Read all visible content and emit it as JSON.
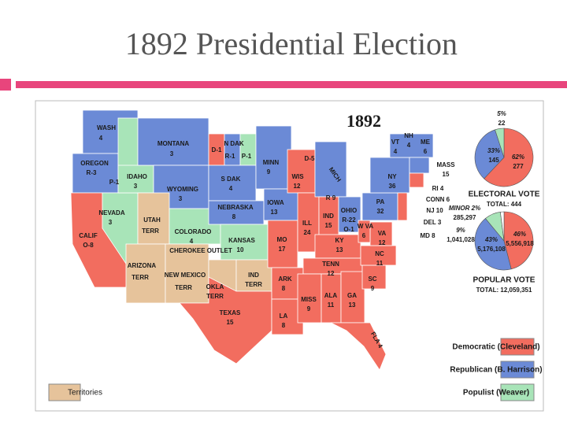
{
  "title": "1892 Presidential Election",
  "map": {
    "title": "1892",
    "labels": [
      "WASH",
      "4",
      "MONTANA",
      "3",
      "OREGON",
      "R-3",
      "P-1",
      "IDAHO",
      "3",
      "N DAK",
      "D-1",
      "R-1",
      "P-1",
      "MINN",
      "9",
      "S DAK",
      "4",
      "WYOMING",
      "3",
      "NEVADA",
      "3",
      "UTAH",
      "TERR",
      "NEBRASKA",
      "8",
      "IOWA",
      "13",
      "WIS",
      "12",
      "COLORADO",
      "4",
      "KANSAS",
      "10",
      "CHEROKEE OUTLET",
      "CALIF",
      "O-8",
      "ARIZONA",
      "TERR",
      "NEW MEXICO",
      "TERR",
      "OKLA",
      "TERR",
      "IND",
      "TERR",
      "TEXAS",
      "15",
      "MO",
      "17",
      "ARK",
      "8",
      "LA",
      "8",
      "ILL",
      "24",
      "IND",
      "15",
      "OHIO",
      "R-22",
      "O-1",
      "MICH",
      "R 9",
      "D-5",
      "KY",
      "13",
      "TENN",
      "12",
      "MISS",
      "9",
      "ALA",
      "11",
      "GA",
      "13",
      "SC",
      "9",
      "NC",
      "11",
      "VA",
      "12",
      "W VA",
      "6",
      "PA",
      "32",
      "NY",
      "36",
      "VT",
      "4",
      "NH",
      "4",
      "ME",
      "6",
      "MASS",
      "15",
      "RI 4",
      "CONN 6",
      "NJ 10",
      "DEL 3",
      "MD 8",
      "FLA 4"
    ]
  },
  "electoral_vote": {
    "title": "ELECTORAL VOTE",
    "total": "TOTAL: 444",
    "slices": [
      {
        "value": 62,
        "label": "62%",
        "count": "277",
        "color": "#f26d5f"
      },
      {
        "value": 33,
        "label": "33%",
        "count": "145",
        "color": "#6b8ad6"
      },
      {
        "value": 5,
        "label": "5%",
        "count": "22",
        "color": "#a8e4b8"
      }
    ]
  },
  "popular_vote": {
    "title": "POPULAR VOTE",
    "total": "TOTAL: 12,059,351",
    "slices": [
      {
        "value": 46,
        "label": "46%",
        "count": "5,556,918",
        "color": "#f26d5f"
      },
      {
        "value": 43,
        "label": "43%",
        "count": "5,176,108",
        "color": "#6b8ad6"
      },
      {
        "value": 9,
        "label": "9%",
        "count": "1,041,028",
        "color": "#a8e4b8"
      },
      {
        "value": 2,
        "label": "MINOR 2%",
        "count": "285,297",
        "color": "#ffffff"
      }
    ]
  },
  "legend": [
    {
      "label": "Democratic (Cleveland)",
      "color": "#f26d5f"
    },
    {
      "label": "Republican (B. Harrison)",
      "color": "#6b8ad6"
    },
    {
      "label": "Populist (Weaver)",
      "color": "#a8e4b8"
    },
    {
      "label": "Territories",
      "color": "#e6c39b"
    }
  ]
}
